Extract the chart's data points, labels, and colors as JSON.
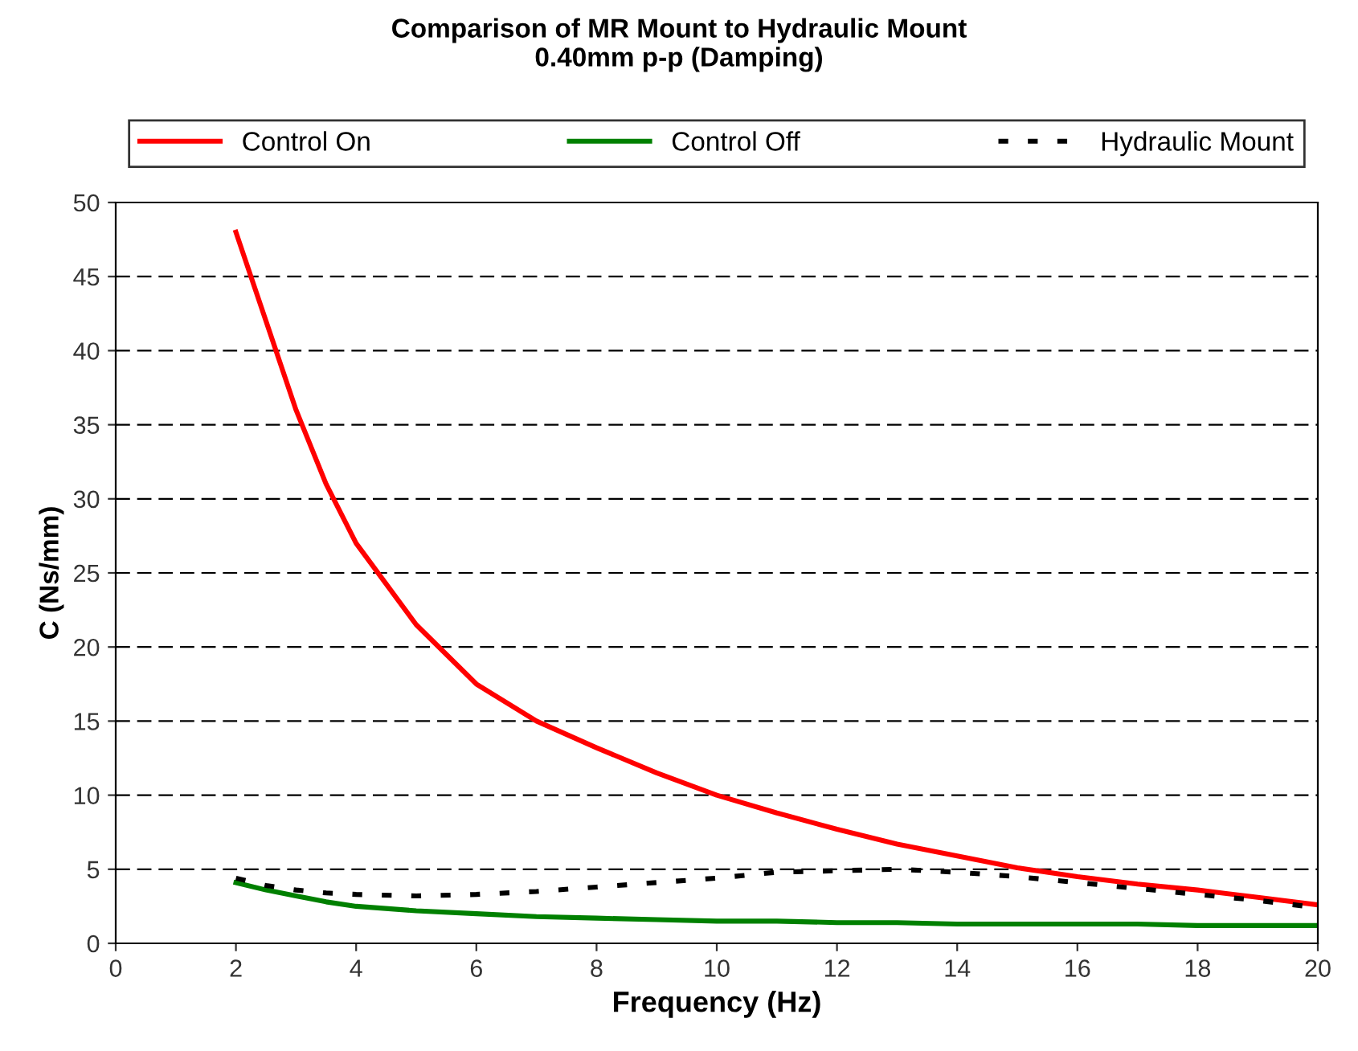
{
  "chart_data": {
    "type": "line",
    "title": "Comparison of MR Mount to Hydraulic Mount\n0.40mm p-p (Damping)",
    "xlabel": "Frequency (Hz)",
    "ylabel": "C (Ns/mm)",
    "x": [
      2,
      2.5,
      3,
      3.5,
      4,
      5,
      6,
      7,
      8,
      9,
      10,
      11,
      12,
      13,
      14,
      15,
      16,
      17,
      18,
      19,
      20
    ],
    "series": [
      {
        "name": "Control On",
        "color": "#ff0000",
        "line_style": "solid",
        "values": [
          48,
          42,
          36,
          31,
          27,
          21.5,
          17.5,
          15,
          13.2,
          11.5,
          10,
          8.8,
          7.7,
          6.7,
          5.9,
          5.1,
          4.5,
          4,
          3.6,
          3.1,
          2.6
        ]
      },
      {
        "name": "Control Off",
        "color": "#008000",
        "line_style": "solid",
        "values": [
          4.1,
          3.6,
          3.2,
          2.8,
          2.5,
          2.2,
          2,
          1.8,
          1.7,
          1.6,
          1.5,
          1.5,
          1.4,
          1.4,
          1.3,
          1.3,
          1.3,
          1.3,
          1.2,
          1.2,
          1.2
        ]
      },
      {
        "name": "Hydraulic Mount",
        "color": "#000000",
        "line_style": "dotted",
        "values": [
          4.4,
          3.9,
          3.6,
          3.4,
          3.3,
          3.2,
          3.3,
          3.5,
          3.8,
          4.1,
          4.4,
          4.8,
          4.9,
          5,
          4.8,
          4.5,
          4.1,
          3.7,
          3.3,
          2.9,
          2.4
        ]
      }
    ],
    "xlim": [
      0,
      20
    ],
    "xticks": [
      0,
      2,
      4,
      6,
      8,
      10,
      12,
      14,
      16,
      18,
      20
    ],
    "ylim": [
      0,
      50
    ],
    "yticks": [
      0,
      5,
      10,
      15,
      20,
      25,
      30,
      35,
      40,
      45,
      50
    ],
    "grid": "y",
    "legend": "top",
    "marker": "none"
  }
}
